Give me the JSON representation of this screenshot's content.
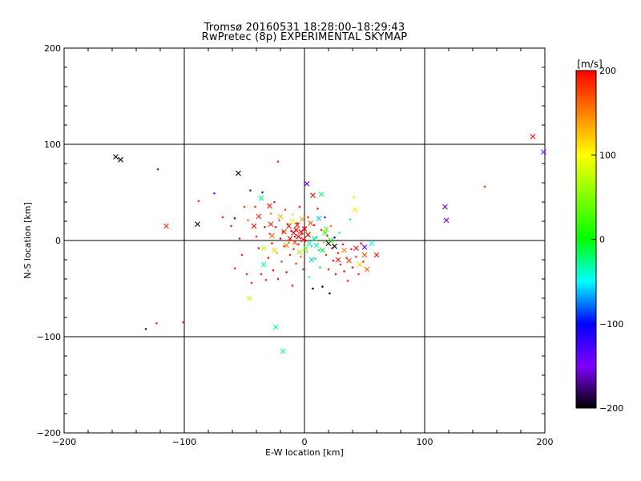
{
  "title": "Tromsø 20160531 18:28:00–18:29:43",
  "subtitle": "RwPretec (8p) EXPERIMENTAL SKYMAP",
  "chart_data": {
    "type": "scatter",
    "xlabel": "E-W location [km]",
    "ylabel": "N-S location [km]",
    "xlim": [
      -200,
      200
    ],
    "ylim": [
      -200,
      200
    ],
    "x_ticks": [
      -200,
      -100,
      0,
      100,
      200
    ],
    "y_ticks": [
      -200,
      -100,
      0,
      100,
      200
    ],
    "grid": true,
    "colorbar": {
      "unit": "[m/s]",
      "range": [
        -200,
        200
      ],
      "ticks": [
        -200,
        -100,
        0,
        100,
        200
      ]
    },
    "large_markers": [
      {
        "x": -157,
        "y": 87,
        "v": -200
      },
      {
        "x": -153,
        "y": 84,
        "v": -200
      },
      {
        "x": -115,
        "y": 15,
        "v": 185
      },
      {
        "x": -89,
        "y": 17,
        "v": -200
      },
      {
        "x": -55,
        "y": 70,
        "v": -200
      },
      {
        "x": -46,
        "y": -60,
        "v": 80
      },
      {
        "x": -42,
        "y": 15,
        "v": 200
      },
      {
        "x": -38,
        "y": 25,
        "v": 185
      },
      {
        "x": -36,
        "y": 44,
        "v": -30
      },
      {
        "x": -34,
        "y": -8,
        "v": 70
      },
      {
        "x": -34,
        "y": -25,
        "v": -35
      },
      {
        "x": -29,
        "y": 36,
        "v": 190
      },
      {
        "x": -28,
        "y": 17,
        "v": 190
      },
      {
        "x": -27,
        "y": 5,
        "v": 160
      },
      {
        "x": -25,
        "y": -10,
        "v": 120
      },
      {
        "x": -24,
        "y": -90,
        "v": -35
      },
      {
        "x": -20,
        "y": 25,
        "v": 130
      },
      {
        "x": -18,
        "y": -115,
        "v": -25
      },
      {
        "x": -17,
        "y": 9,
        "v": 180
      },
      {
        "x": -15,
        "y": -5,
        "v": 150
      },
      {
        "x": -13,
        "y": 15,
        "v": 195
      },
      {
        "x": -12,
        "y": 2,
        "v": 200
      },
      {
        "x": -10,
        "y": 20,
        "v": 90
      },
      {
        "x": -9,
        "y": 8,
        "v": 200
      },
      {
        "x": -8,
        "y": -2,
        "v": 170
      },
      {
        "x": -7,
        "y": 11,
        "v": 200
      },
      {
        "x": -6,
        "y": 16,
        "v": 185
      },
      {
        "x": -5,
        "y": 4,
        "v": 200
      },
      {
        "x": -4,
        "y": -12,
        "v": 60
      },
      {
        "x": -3,
        "y": 9,
        "v": 200
      },
      {
        "x": -2,
        "y": 22,
        "v": 140
      },
      {
        "x": -1,
        "y": 1,
        "v": 195
      },
      {
        "x": 0,
        "y": 12,
        "v": 200
      },
      {
        "x": 1,
        "y": -8,
        "v": 40
      },
      {
        "x": 2,
        "y": 59,
        "v": -135
      },
      {
        "x": 3,
        "y": 6,
        "v": 200
      },
      {
        "x": 4,
        "y": -3,
        "v": -40
      },
      {
        "x": 5,
        "y": 18,
        "v": 170
      },
      {
        "x": 6,
        "y": -20,
        "v": -60
      },
      {
        "x": 7,
        "y": 47,
        "v": 200
      },
      {
        "x": 8,
        "y": 2,
        "v": -20
      },
      {
        "x": 10,
        "y": -5,
        "v": -30
      },
      {
        "x": 12,
        "y": 23,
        "v": -60
      },
      {
        "x": 14,
        "y": 48,
        "v": -20
      },
      {
        "x": 15,
        "y": -10,
        "v": -10
      },
      {
        "x": 17,
        "y": 8,
        "v": 10
      },
      {
        "x": 18,
        "y": 12,
        "v": 40
      },
      {
        "x": 20,
        "y": -3,
        "v": -200
      },
      {
        "x": 22,
        "y": 0,
        "v": 5
      },
      {
        "x": 25,
        "y": -6,
        "v": -200
      },
      {
        "x": 28,
        "y": -20,
        "v": 195
      },
      {
        "x": 33,
        "y": -10,
        "v": 150
      },
      {
        "x": 37,
        "y": -21,
        "v": 170
      },
      {
        "x": 42,
        "y": 32,
        "v": 110
      },
      {
        "x": 43,
        "y": -8,
        "v": 200
      },
      {
        "x": 46,
        "y": -25,
        "v": 120
      },
      {
        "x": 50,
        "y": -15,
        "v": 170
      },
      {
        "x": 50,
        "y": -7,
        "v": -135
      },
      {
        "x": 52,
        "y": -30,
        "v": 160
      },
      {
        "x": 56,
        "y": -3,
        "v": -50
      },
      {
        "x": 60,
        "y": -15,
        "v": 195
      },
      {
        "x": 117,
        "y": 35,
        "v": -160
      },
      {
        "x": 118,
        "y": 21,
        "v": -150
      },
      {
        "x": 190,
        "y": 108,
        "v": 195
      },
      {
        "x": 199,
        "y": 92,
        "v": -150
      }
    ],
    "small_markers": [
      {
        "x": -132,
        "y": -92,
        "v": -180
      },
      {
        "x": -123,
        "y": -86,
        "v": 185
      },
      {
        "x": -122,
        "y": 74,
        "v": -140
      },
      {
        "x": -101,
        "y": -85,
        "v": 185
      },
      {
        "x": -88,
        "y": 41,
        "v": 190
      },
      {
        "x": -75,
        "y": 49,
        "v": -150
      },
      {
        "x": -68,
        "y": 24,
        "v": 185
      },
      {
        "x": -61,
        "y": 15,
        "v": 195
      },
      {
        "x": -58,
        "y": 23,
        "v": -100
      },
      {
        "x": -58,
        "y": -29,
        "v": 185
      },
      {
        "x": -54,
        "y": 2,
        "v": 195
      },
      {
        "x": -52,
        "y": -15,
        "v": 190
      },
      {
        "x": -50,
        "y": 35,
        "v": 180
      },
      {
        "x": -48,
        "y": -35,
        "v": 185
      },
      {
        "x": -47,
        "y": 21,
        "v": 160
      },
      {
        "x": -45,
        "y": 52,
        "v": -130
      },
      {
        "x": -44,
        "y": -44,
        "v": 180
      },
      {
        "x": -41,
        "y": 35,
        "v": 185
      },
      {
        "x": -40,
        "y": 4,
        "v": 190
      },
      {
        "x": -38,
        "y": -8,
        "v": 195
      },
      {
        "x": -36,
        "y": -35,
        "v": 190
      },
      {
        "x": -35,
        "y": 50,
        "v": -110
      },
      {
        "x": -33,
        "y": 14,
        "v": 200
      },
      {
        "x": -32,
        "y": -41,
        "v": 185
      },
      {
        "x": -30,
        "y": -18,
        "v": 195
      },
      {
        "x": -29,
        "y": 7,
        "v": 180
      },
      {
        "x": -28,
        "y": 28,
        "v": 150
      },
      {
        "x": -27,
        "y": -3,
        "v": 200
      },
      {
        "x": -26,
        "y": -31,
        "v": 195
      },
      {
        "x": -25,
        "y": 40,
        "v": 190
      },
      {
        "x": -24,
        "y": 14,
        "v": 200
      },
      {
        "x": -23,
        "y": -13,
        "v": 130
      },
      {
        "x": -22,
        "y": 82,
        "v": 190
      },
      {
        "x": -22,
        "y": -40,
        "v": 190
      },
      {
        "x": -21,
        "y": 21,
        "v": 170
      },
      {
        "x": -20,
        "y": 2,
        "v": 200
      },
      {
        "x": -19,
        "y": -22,
        "v": 180
      },
      {
        "x": -18,
        "y": 9,
        "v": 190
      },
      {
        "x": -17,
        "y": -6,
        "v": 175
      },
      {
        "x": -16,
        "y": 32,
        "v": 185
      },
      {
        "x": -15,
        "y": -33,
        "v": 200
      },
      {
        "x": -14,
        "y": 17,
        "v": 195
      },
      {
        "x": -13,
        "y": -2,
        "v": 150
      },
      {
        "x": -12,
        "y": -15,
        "v": 190
      },
      {
        "x": -11,
        "y": 10,
        "v": 200
      },
      {
        "x": -10,
        "y": -47,
        "v": 195
      },
      {
        "x": -10,
        "y": 27,
        "v": 110
      },
      {
        "x": -9,
        "y": -9,
        "v": 185
      },
      {
        "x": -8,
        "y": 4,
        "v": 200
      },
      {
        "x": -7,
        "y": -24,
        "v": 170
      },
      {
        "x": -6,
        "y": 18,
        "v": 195
      },
      {
        "x": -5,
        "y": -4,
        "v": 190
      },
      {
        "x": -4,
        "y": 35,
        "v": 190
      },
      {
        "x": -3,
        "y": -17,
        "v": 160
      },
      {
        "x": -2,
        "y": 7,
        "v": 200
      },
      {
        "x": -1,
        "y": -30,
        "v": 185
      },
      {
        "x": 0,
        "y": 14,
        "v": 195
      },
      {
        "x": 1,
        "y": 0,
        "v": 200
      },
      {
        "x": 2,
        "y": -12,
        "v": 60
      },
      {
        "x": 3,
        "y": 24,
        "v": 180
      },
      {
        "x": 4,
        "y": -38,
        "v": -40
      },
      {
        "x": 5,
        "y": 9,
        "v": 100
      },
      {
        "x": 6,
        "y": -6,
        "v": -30
      },
      {
        "x": 7,
        "y": -50,
        "v": -200
      },
      {
        "x": 8,
        "y": 16,
        "v": 195
      },
      {
        "x": 9,
        "y": -19,
        "v": 10
      },
      {
        "x": 10,
        "y": 3,
        "v": -60
      },
      {
        "x": 11,
        "y": 33,
        "v": 190
      },
      {
        "x": 12,
        "y": -10,
        "v": -20
      },
      {
        "x": 13,
        "y": -28,
        "v": -10
      },
      {
        "x": 14,
        "y": 11,
        "v": 180
      },
      {
        "x": 15,
        "y": -48,
        "v": -200
      },
      {
        "x": 16,
        "y": -2,
        "v": 40
      },
      {
        "x": 17,
        "y": 24,
        "v": -150
      },
      {
        "x": 18,
        "y": -15,
        "v": 190
      },
      {
        "x": 19,
        "y": 5,
        "v": 195
      },
      {
        "x": 20,
        "y": -30,
        "v": 185
      },
      {
        "x": 21,
        "y": -55,
        "v": -200
      },
      {
        "x": 22,
        "y": 15,
        "v": 160
      },
      {
        "x": 23,
        "y": -8,
        "v": 190
      },
      {
        "x": 24,
        "y": -21,
        "v": 200
      },
      {
        "x": 25,
        "y": 3,
        "v": -100
      },
      {
        "x": 26,
        "y": -35,
        "v": 190
      },
      {
        "x": 28,
        "y": -13,
        "v": 195
      },
      {
        "x": 29,
        "y": 8,
        "v": -30
      },
      {
        "x": 30,
        "y": -25,
        "v": 185
      },
      {
        "x": 32,
        "y": -4,
        "v": 190
      },
      {
        "x": 33,
        "y": -32,
        "v": 195
      },
      {
        "x": 35,
        "y": -18,
        "v": 180
      },
      {
        "x": 36,
        "y": -42,
        "v": 185
      },
      {
        "x": 38,
        "y": 22,
        "v": -20
      },
      {
        "x": 39,
        "y": -9,
        "v": 190
      },
      {
        "x": 40,
        "y": -28,
        "v": 200
      },
      {
        "x": 41,
        "y": 45,
        "v": 70
      },
      {
        "x": 43,
        "y": -17,
        "v": 185
      },
      {
        "x": 45,
        "y": -35,
        "v": 190
      },
      {
        "x": 47,
        "y": -3,
        "v": 200
      },
      {
        "x": 49,
        "y": -22,
        "v": 180
      },
      {
        "x": 150,
        "y": 56,
        "v": 185
      }
    ]
  }
}
